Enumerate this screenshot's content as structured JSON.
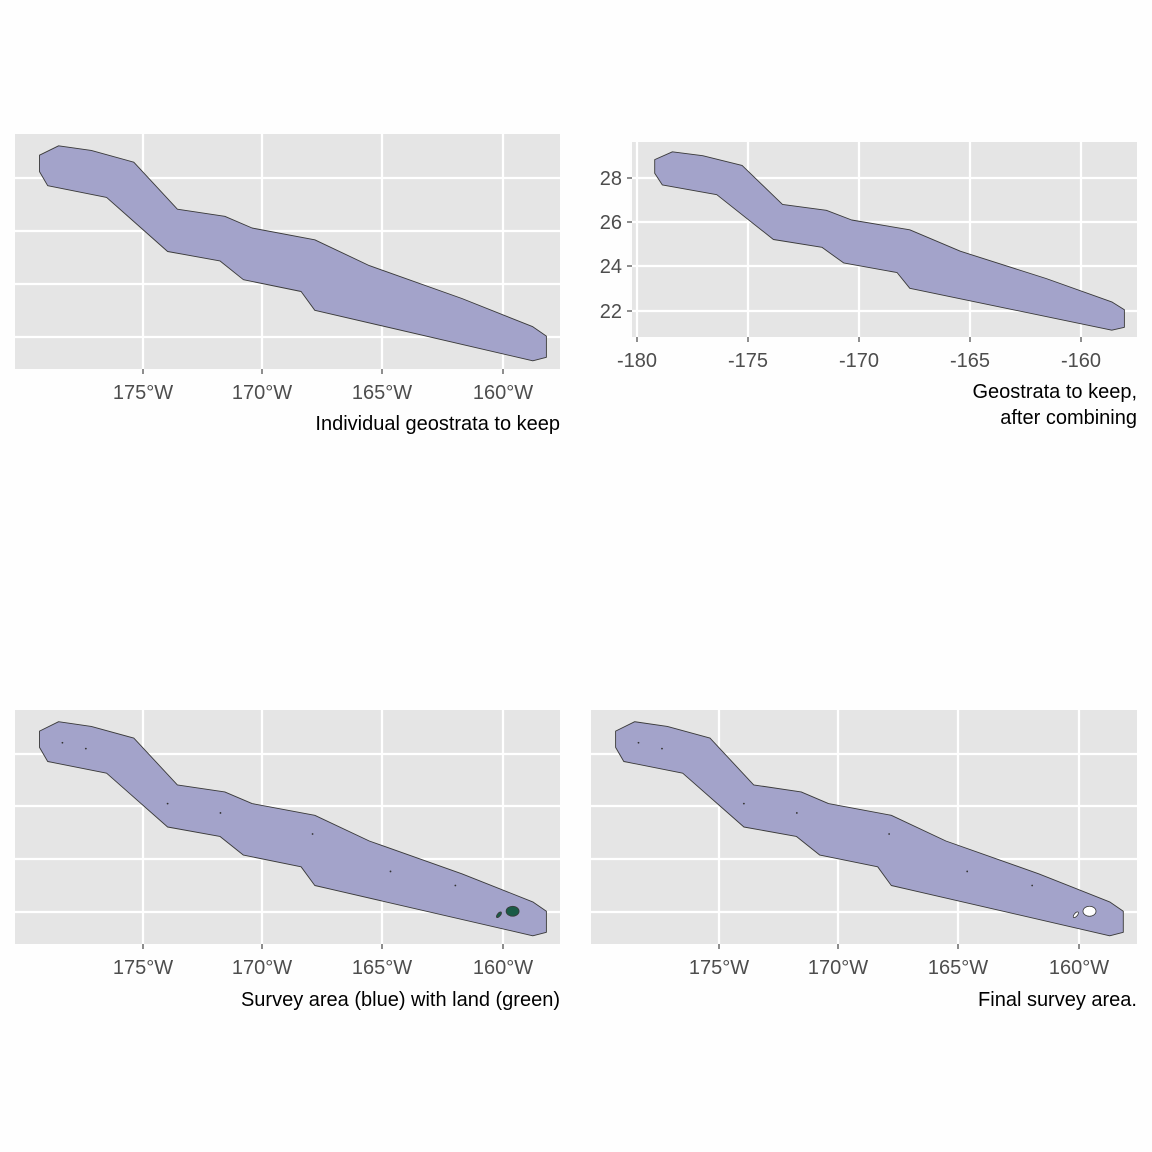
{
  "colors": {
    "panel_bg": "#e5e5e5",
    "grid": "#ffffff",
    "survey_fill": "#a0a0c8",
    "outline": "#3a3a3a",
    "land": "#1a5a46",
    "hole": "#ffffff",
    "tick_text": "#4d4d4d",
    "caption_text": "#000000"
  },
  "panels": [
    {
      "id": "individual",
      "caption": [
        "Individual geostrata to keep"
      ],
      "x_ticks": [
        "175°W",
        "170°W",
        "165°W",
        "160°W"
      ],
      "y_ticks": [],
      "islands": "none"
    },
    {
      "id": "combined",
      "caption": [
        "Geostrata to keep,",
        "after combining"
      ],
      "x_ticks": [
        "-180",
        "-175",
        "-170",
        "-165",
        "-160"
      ],
      "y_ticks": [
        "28",
        "26",
        "24",
        "22"
      ],
      "islands": "none"
    },
    {
      "id": "with-land",
      "caption": [
        "Survey area (blue) with land (green)"
      ],
      "x_ticks": [
        "175°W",
        "170°W",
        "165°W",
        "160°W"
      ],
      "y_ticks": [],
      "islands": "land"
    },
    {
      "id": "final",
      "caption": [
        "Final survey area."
      ],
      "x_ticks": [
        "175°W",
        "170°W",
        "165°W",
        "160°W"
      ],
      "y_ticks": [],
      "islands": "holes"
    }
  ]
}
